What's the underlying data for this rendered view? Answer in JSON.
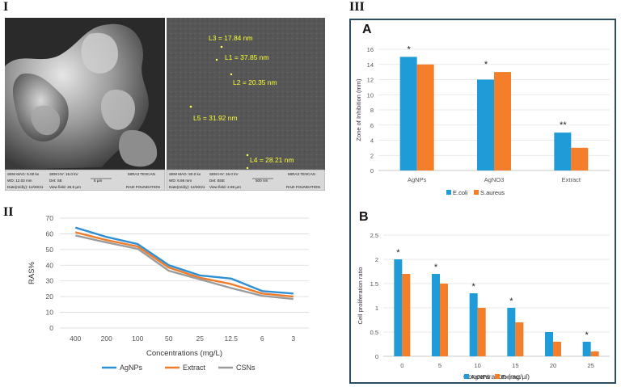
{
  "labels": {
    "p1": "I",
    "p2": "II",
    "p3": "III"
  },
  "sem": {
    "left": {
      "footer": [
        [
          "SEM MAG: 5.00 kx",
          "SEM HV: 15.0 kV",
          "MIRA3 TESCAN"
        ],
        [
          "WD: 12.03 mm",
          "Det: SE",
          "5 µm"
        ],
        [
          "Date(m/d/y): 12/30/21",
          "View field: 26.9 µm",
          "RAZI FOUNDATION"
        ]
      ]
    },
    "right": {
      "measurements": [
        "L3 = 17.84 nm",
        "L1 = 37.85 nm",
        "L2 = 20.35 nm",
        "L5 = 31.92 nm",
        "L4 = 28.21 nm"
      ],
      "footer": [
        [
          "SEM MAG: 50.0 kx",
          "SEM HV: 15.0 kV",
          "MIRA3 TESCAN"
        ],
        [
          "WD: 6.98 mm",
          "Det: BSE",
          "500 nm"
        ],
        [
          "Date(m/d/y): 12/30/21",
          "View field: 2.69 µm",
          "RAZI FOUNDATION"
        ]
      ]
    }
  },
  "chart_data": [
    {
      "id": "II",
      "type": "line",
      "title": "",
      "xlabel": "Concentrations (mg/L)",
      "ylabel": "RAS%",
      "categories": [
        "400",
        "200",
        "100",
        "50",
        "25",
        "12.5",
        "6",
        "3"
      ],
      "ylim": [
        0,
        70
      ],
      "yticks": [
        0,
        10,
        20,
        30,
        40,
        50,
        60,
        70
      ],
      "grid": true,
      "legend": "bottom",
      "series": [
        {
          "name": "AgNPs",
          "color": "#2e8fd4",
          "values": [
            64,
            58,
            53.5,
            40,
            33.5,
            31.5,
            23.5,
            22
          ]
        },
        {
          "name": "Extract",
          "color": "#ef7c2b",
          "values": [
            61,
            56,
            52,
            38.5,
            32,
            28,
            22,
            20
          ]
        },
        {
          "name": "CSNs",
          "color": "#9d9d9d",
          "values": [
            59,
            54.5,
            50.5,
            36.5,
            31,
            25.5,
            20.5,
            18.5
          ]
        }
      ]
    },
    {
      "id": "A",
      "type": "bar",
      "panel_letter": "A",
      "title": "",
      "xlabel": "",
      "ylabel": "Zone of Inhibition (mm)",
      "categories": [
        "AgNPs",
        "AgNO3",
        "Extract"
      ],
      "ylim": [
        0,
        16
      ],
      "yticks": [
        0,
        2,
        4,
        6,
        8,
        10,
        12,
        14,
        16
      ],
      "grid": true,
      "legend": "bottom",
      "series": [
        {
          "name": "E.coli",
          "color": "#1f9bd7",
          "values": [
            15,
            12,
            5
          ]
        },
        {
          "name": "S.aureus",
          "color": "#f47e2a",
          "values": [
            14,
            13,
            3
          ]
        }
      ],
      "annotations": [
        "*",
        "*",
        "**"
      ]
    },
    {
      "id": "B",
      "type": "bar",
      "panel_letter": "B",
      "title": "",
      "xlabel": "Concentration (mg/µl)",
      "ylabel": "Cell proliferation ratio",
      "categories": [
        "0",
        "5",
        "10",
        "15",
        "20",
        "25"
      ],
      "ylim": [
        0,
        2.5
      ],
      "yticks": [
        "0",
        "0.5",
        "1",
        "1.5",
        "2",
        "2.5"
      ],
      "grid": true,
      "legend": "bottom",
      "series": [
        {
          "name": "AgNPs",
          "color": "#1f9bd7",
          "values": [
            2,
            1.7,
            1.3,
            1,
            0.5,
            0.3
          ]
        },
        {
          "name": "Extract",
          "color": "#f47e2a",
          "values": [
            1.7,
            1.5,
            1,
            0.7,
            0.3,
            0.1
          ]
        }
      ],
      "annotations": [
        "*",
        "*",
        "*",
        "*",
        "",
        "*"
      ]
    }
  ]
}
